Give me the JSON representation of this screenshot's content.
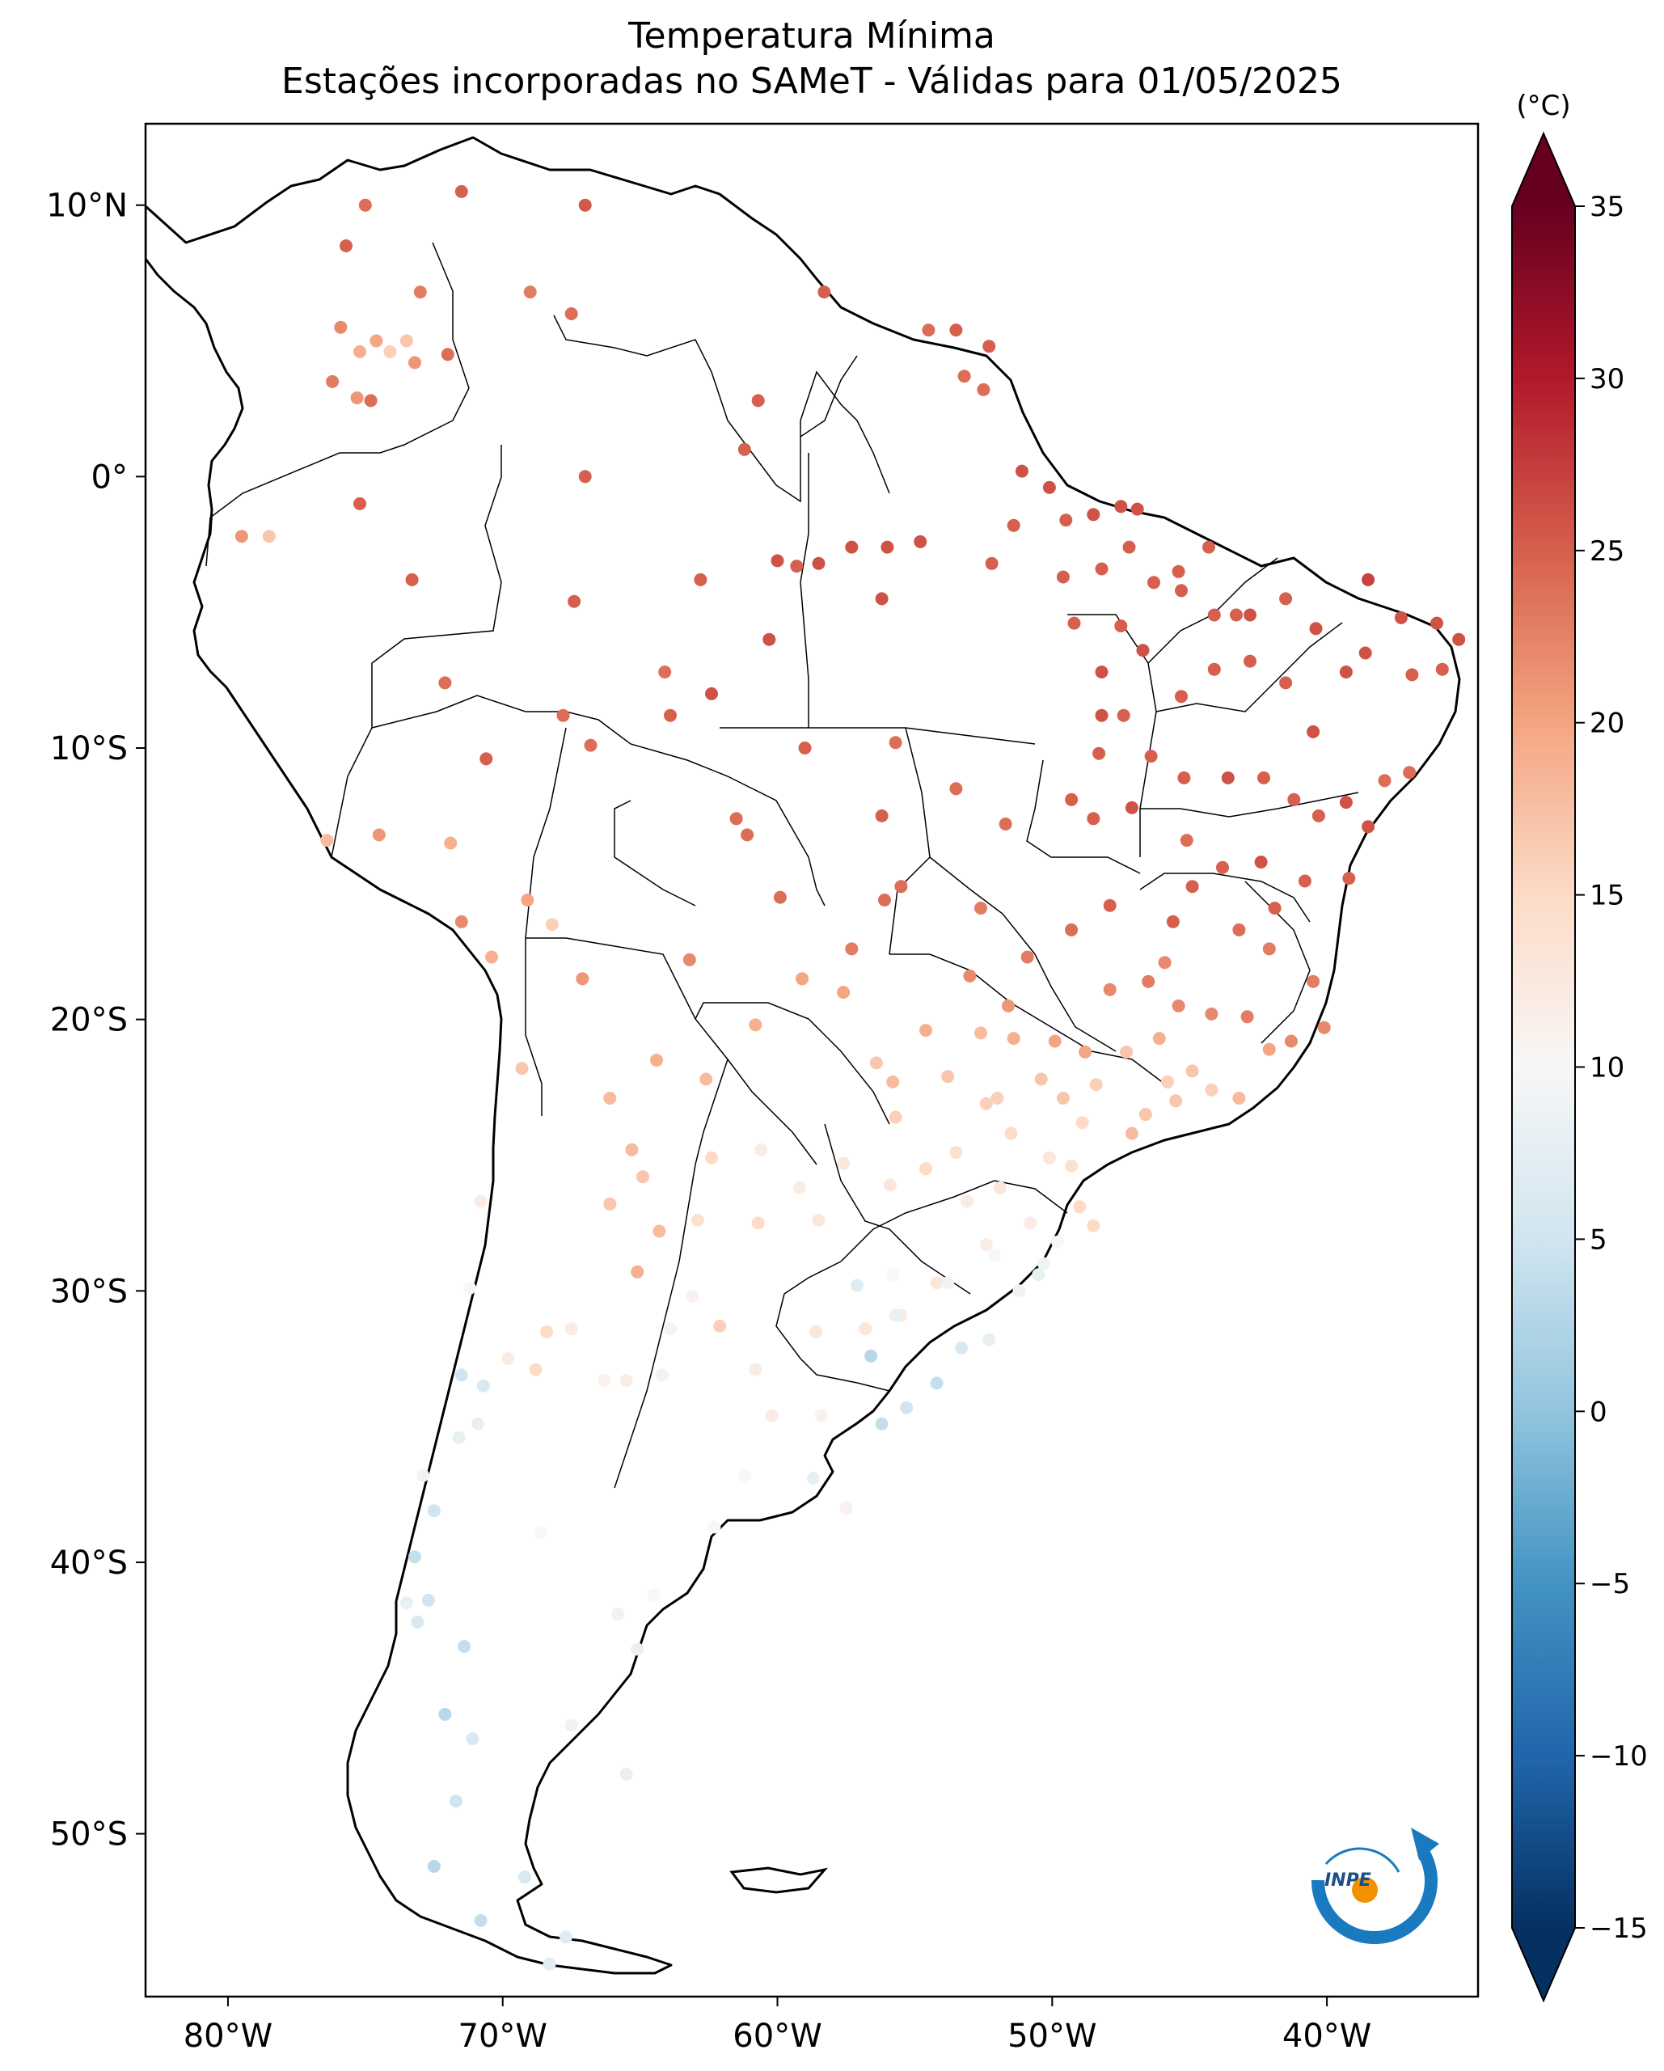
{
  "title": {
    "line1": "Temperatura Mínima",
    "line2": "Estações incorporadas no SAMeT - Válidas para 01/05/2025"
  },
  "map": {
    "lon_range": [
      -83,
      -34.5
    ],
    "lat_range": [
      -56,
      13
    ],
    "lon_ticks": [
      {
        "value": -80,
        "label": "80°W"
      },
      {
        "value": -70,
        "label": "70°W"
      },
      {
        "value": -60,
        "label": "60°W"
      },
      {
        "value": -50,
        "label": "50°W"
      },
      {
        "value": -40,
        "label": "40°W"
      }
    ],
    "lat_ticks": [
      {
        "value": 10,
        "label": "10°N"
      },
      {
        "value": 0,
        "label": "0°"
      },
      {
        "value": -10,
        "label": "10°S"
      },
      {
        "value": -20,
        "label": "20°S"
      },
      {
        "value": -30,
        "label": "30°S"
      },
      {
        "value": -40,
        "label": "40°S"
      },
      {
        "value": -50,
        "label": "50°S"
      }
    ]
  },
  "colorbar": {
    "unit": "(°C)",
    "min": -15,
    "max": 35,
    "ticks": [
      {
        "value": 35,
        "label": "35"
      },
      {
        "value": 30,
        "label": "30"
      },
      {
        "value": 25,
        "label": "25"
      },
      {
        "value": 20,
        "label": "20"
      },
      {
        "value": 15,
        "label": "15"
      },
      {
        "value": 10,
        "label": "10"
      },
      {
        "value": 5,
        "label": "5"
      },
      {
        "value": 0,
        "label": "0"
      },
      {
        "value": -5,
        "label": "−5"
      },
      {
        "value": -10,
        "label": "−10"
      },
      {
        "value": -15,
        "label": "−15"
      }
    ],
    "colormap": [
      "#053061",
      "#2166ac",
      "#4393c3",
      "#92c5de",
      "#d1e5f0",
      "#f7f7f7",
      "#fddbc7",
      "#f4a582",
      "#d6604d",
      "#b2182b",
      "#67001f"
    ]
  },
  "logo": {
    "text": "INPE",
    "ring_color": "#1a7abf",
    "dot_color": "#f29100"
  },
  "chart_data": {
    "type": "scatter",
    "x_name": "longitude",
    "y_name": "latitude",
    "value_name": "minimum temperature",
    "stations": [
      [
        -75,
        10,
        24
      ],
      [
        -71.5,
        10.5,
        25
      ],
      [
        -67,
        10,
        25.5
      ],
      [
        -75.7,
        8.5,
        25
      ],
      [
        -73,
        6.8,
        23
      ],
      [
        -69,
        6.8,
        23
      ],
      [
        -67.5,
        6,
        24
      ],
      [
        -75.9,
        5.5,
        22
      ],
      [
        -75.2,
        4.6,
        19
      ],
      [
        -74.6,
        5,
        20
      ],
      [
        -74.1,
        4.6,
        16
      ],
      [
        -73.5,
        5,
        17
      ],
      [
        -73.2,
        4.2,
        21
      ],
      [
        -76.2,
        3.5,
        23
      ],
      [
        -75.3,
        2.9,
        21
      ],
      [
        -72,
        4.5,
        24
      ],
      [
        -74.8,
        2.8,
        24
      ],
      [
        -58.3,
        6.8,
        25
      ],
      [
        -54.5,
        5.4,
        24
      ],
      [
        -53.5,
        5.4,
        25
      ],
      [
        -52.3,
        4.8,
        25
      ],
      [
        -53.2,
        3.7,
        24
      ],
      [
        -52.5,
        3.2,
        24
      ],
      [
        -60.7,
        2.8,
        25
      ],
      [
        -61.2,
        1,
        25
      ],
      [
        -67,
        0,
        25
      ],
      [
        -51.1,
        0.2,
        26
      ],
      [
        -50.1,
        -0.4,
        26
      ],
      [
        -75.2,
        -1,
        25
      ],
      [
        -78.5,
        -2.2,
        17
      ],
      [
        -79.5,
        -2.2,
        21
      ],
      [
        -48.5,
        -1.4,
        26
      ],
      [
        -47.5,
        -1.1,
        26
      ],
      [
        -44.3,
        -2.6,
        25
      ],
      [
        -46.9,
        -1.2,
        26
      ],
      [
        -49.5,
        -1.6,
        25
      ],
      [
        -60,
        -3.1,
        26
      ],
      [
        -58.5,
        -3.2,
        26
      ],
      [
        -57.3,
        -2.6,
        26
      ],
      [
        -59.3,
        -3.3,
        25
      ],
      [
        -56,
        -2.6,
        26
      ],
      [
        -54.8,
        -2.4,
        26
      ],
      [
        -52.2,
        -3.2,
        25
      ],
      [
        -51.4,
        -1.8,
        25
      ],
      [
        -49.6,
        -3.7,
        25
      ],
      [
        -48.2,
        -3.4,
        25
      ],
      [
        -46.3,
        -3.9,
        25
      ],
      [
        -45.4,
        -3.5,
        25
      ],
      [
        -47.2,
        -2.6,
        25
      ],
      [
        -73.3,
        -3.8,
        25
      ],
      [
        -67.4,
        -4.6,
        25
      ],
      [
        -60.3,
        -6,
        26
      ],
      [
        -62.8,
        -3.8,
        25
      ],
      [
        -62.4,
        -8,
        26
      ],
      [
        -56.2,
        -4.5,
        26
      ],
      [
        -49.2,
        -5.4,
        25
      ],
      [
        -47.5,
        -5.5,
        25
      ],
      [
        -45.3,
        -4.2,
        25
      ],
      [
        -44.1,
        -5.1,
        25
      ],
      [
        -43.3,
        -5.1,
        25
      ],
      [
        -42.8,
        -5.1,
        26
      ],
      [
        -41.5,
        -4.5,
        25
      ],
      [
        -40.4,
        -5.6,
        26
      ],
      [
        -38.5,
        -3.8,
        27
      ],
      [
        -37.3,
        -5.2,
        26
      ],
      [
        -36,
        -5.4,
        26
      ],
      [
        -35.2,
        -6,
        26
      ],
      [
        -35.8,
        -7.1,
        25
      ],
      [
        -36.9,
        -7.3,
        25
      ],
      [
        -38.6,
        -6.5,
        26
      ],
      [
        -39.3,
        -7.2,
        26
      ],
      [
        -40.5,
        -9.4,
        26
      ],
      [
        -41.5,
        -7.6,
        25
      ],
      [
        -42.8,
        -6.8,
        25
      ],
      [
        -44.1,
        -7.1,
        25
      ],
      [
        -45.3,
        -8.1,
        25
      ],
      [
        -46.7,
        -6.4,
        26
      ],
      [
        -48.2,
        -7.2,
        26
      ],
      [
        -47.4,
        -8.8,
        25
      ],
      [
        -48.3,
        -10.2,
        25
      ],
      [
        -49.3,
        -11.9,
        25
      ],
      [
        -48.5,
        -12.6,
        25
      ],
      [
        -47.1,
        -12.2,
        26
      ],
      [
        -45.2,
        -11.1,
        25
      ],
      [
        -43.6,
        -11.1,
        26
      ],
      [
        -42.3,
        -11.1,
        25
      ],
      [
        -41.2,
        -11.9,
        25
      ],
      [
        -40.3,
        -12.5,
        25
      ],
      [
        -39.3,
        -12,
        26
      ],
      [
        -38.5,
        -12.9,
        26
      ],
      [
        -39.2,
        -14.8,
        25
      ],
      [
        -40.8,
        -14.9,
        25
      ],
      [
        -42.4,
        -14.2,
        26
      ],
      [
        -43.8,
        -14.4,
        25
      ],
      [
        -44.9,
        -15.1,
        25
      ],
      [
        -45.6,
        -16.4,
        25
      ],
      [
        -47.9,
        -15.8,
        25
      ],
      [
        -49.3,
        -16.7,
        24
      ],
      [
        -50.9,
        -17.7,
        23
      ],
      [
        -52.6,
        -15.9,
        23
      ],
      [
        -55.5,
        -15.1,
        24
      ],
      [
        -56.1,
        -15.6,
        24
      ],
      [
        -57.3,
        -17.4,
        23
      ],
      [
        -59.9,
        -15.5,
        24
      ],
      [
        -61.1,
        -13.2,
        24
      ],
      [
        -63.9,
        -8.8,
        25
      ],
      [
        -66.8,
        -9.9,
        24
      ],
      [
        -70.6,
        -10.4,
        25
      ],
      [
        -67.8,
        -8.8,
        24
      ],
      [
        -72.1,
        -7.6,
        24
      ],
      [
        -64.1,
        -7.2,
        24
      ],
      [
        -61.5,
        -12.6,
        24
      ],
      [
        -59,
        -10,
        25
      ],
      [
        -56.2,
        -12.5,
        25
      ],
      [
        -55.7,
        -9.8,
        24
      ],
      [
        -53.5,
        -11.5,
        24
      ],
      [
        -51.7,
        -12.8,
        24
      ],
      [
        -48.2,
        -8.8,
        26
      ],
      [
        -46.4,
        -10.3,
        25
      ],
      [
        -45.1,
        -13.4,
        24
      ],
      [
        -43.2,
        -16.7,
        24
      ],
      [
        -42.1,
        -17.4,
        23
      ],
      [
        -40.5,
        -18.6,
        23
      ],
      [
        -40.1,
        -20.3,
        22
      ],
      [
        -41.3,
        -20.8,
        22
      ],
      [
        -42.9,
        -19.9,
        23
      ],
      [
        -44.2,
        -19.8,
        22
      ],
      [
        -45.4,
        -19.5,
        22
      ],
      [
        -46.5,
        -18.6,
        23
      ],
      [
        -47.9,
        -18.9,
        22
      ],
      [
        -48.8,
        -21.2,
        20
      ],
      [
        -49.9,
        -20.8,
        20
      ],
      [
        -51.4,
        -20.7,
        19
      ],
      [
        -52.6,
        -20.5,
        18
      ],
      [
        -54.6,
        -20.4,
        19
      ],
      [
        -55.8,
        -22.3,
        18
      ],
      [
        -57.6,
        -19,
        20
      ],
      [
        -59.1,
        -18.5,
        20
      ],
      [
        -60.8,
        -20.2,
        19
      ],
      [
        -62.6,
        -22.2,
        18
      ],
      [
        -63.2,
        -17.8,
        22
      ],
      [
        -64.4,
        -21.5,
        19
      ],
      [
        -65.3,
        -24.8,
        18
      ],
      [
        -66.1,
        -22.9,
        18
      ],
      [
        -67.1,
        -18.5,
        21
      ],
      [
        -68.2,
        -16.5,
        16
      ],
      [
        -71.5,
        -16.4,
        22
      ],
      [
        -69.1,
        -15.6,
        20
      ],
      [
        -76.4,
        -13.4,
        18
      ],
      [
        -74.5,
        -13.2,
        21
      ],
      [
        -71.9,
        -13.5,
        19
      ],
      [
        -70.4,
        -17.7,
        19
      ],
      [
        -69.3,
        -21.8,
        17
      ],
      [
        -65.1,
        -29.3,
        19
      ],
      [
        -64.3,
        -27.8,
        18
      ],
      [
        -62.1,
        -31.3,
        16
      ],
      [
        -60.7,
        -27.5,
        15
      ],
      [
        -58.5,
        -27.4,
        13
      ],
      [
        -56.8,
        -31.4,
        13
      ],
      [
        -55.5,
        -30.9,
        12
      ],
      [
        -54.2,
        -29.7,
        13
      ],
      [
        -52.4,
        -28.3,
        12
      ],
      [
        -50.8,
        -27.5,
        12
      ],
      [
        -49,
        -26.9,
        15
      ],
      [
        -48.5,
        -27.6,
        15
      ],
      [
        -49.3,
        -25.4,
        14
      ],
      [
        -50.1,
        -25.1,
        13
      ],
      [
        -51.5,
        -24.2,
        15
      ],
      [
        -52.4,
        -23.1,
        16
      ],
      [
        -53.5,
        -24.9,
        14
      ],
      [
        -54.6,
        -25.5,
        15
      ],
      [
        -55.9,
        -26.1,
        13
      ],
      [
        -57.6,
        -25.3,
        13
      ],
      [
        -59.2,
        -26.2,
        12
      ],
      [
        -60.6,
        -24.8,
        12
      ],
      [
        -62.4,
        -25.1,
        15
      ],
      [
        -64.9,
        -25.8,
        17
      ],
      [
        -66.1,
        -26.8,
        17
      ],
      [
        -68.4,
        -31.5,
        15
      ],
      [
        -68.8,
        -32.9,
        15
      ],
      [
        -70.8,
        -26.7,
        12
      ],
      [
        -71.2,
        -29.9,
        10
      ],
      [
        -71.5,
        -33.1,
        5
      ],
      [
        -70.7,
        -33.5,
        6
      ],
      [
        -71.6,
        -35.4,
        8
      ],
      [
        -72.5,
        -38.1,
        5
      ],
      [
        -73.2,
        -39.8,
        4
      ],
      [
        -72.7,
        -41.4,
        5
      ],
      [
        -73.1,
        -42.2,
        6
      ],
      [
        -71.4,
        -43.1,
        4
      ],
      [
        -72.1,
        -45.6,
        3
      ],
      [
        -71.1,
        -46.5,
        6
      ],
      [
        -71.7,
        -48.8,
        5
      ],
      [
        -72.5,
        -51.2,
        3
      ],
      [
        -70.8,
        -53.2,
        4
      ],
      [
        -69.2,
        -51.6,
        6
      ],
      [
        -67.7,
        -53.8,
        7
      ],
      [
        -68.3,
        -54.8,
        7
      ],
      [
        -65.5,
        -47.8,
        8
      ],
      [
        -67.5,
        -46,
        9
      ],
      [
        -65.1,
        -43.2,
        8
      ],
      [
        -65.8,
        -41.9,
        9
      ],
      [
        -68.6,
        -38.9,
        10
      ],
      [
        -64.5,
        -41.2,
        10
      ],
      [
        -62.3,
        -38.7,
        10
      ],
      [
        -61.2,
        -36.8,
        10
      ],
      [
        -58.7,
        -36.9,
        8
      ],
      [
        -57.5,
        -38,
        11
      ],
      [
        -60.2,
        -34.6,
        12
      ],
      [
        -58.4,
        -34.6,
        11
      ],
      [
        -56.2,
        -34.9,
        4
      ],
      [
        -55.3,
        -34.3,
        5
      ],
      [
        -54.2,
        -33.4,
        4
      ],
      [
        -53.3,
        -32.1,
        6
      ],
      [
        -52.3,
        -31.8,
        8
      ],
      [
        -51.2,
        -30,
        9
      ],
      [
        -50.5,
        -29.4,
        8
      ],
      [
        -52.1,
        -28.7,
        10
      ],
      [
        -53.8,
        -29.7,
        9
      ],
      [
        -55.8,
        -29.4,
        10
      ],
      [
        -57.1,
        -29.8,
        7
      ],
      [
        -56.6,
        -32.4,
        3
      ],
      [
        -55.7,
        -30.9,
        8
      ],
      [
        -63.9,
        -31.4,
        11
      ],
      [
        -64.2,
        -33.1,
        9
      ],
      [
        -65.5,
        -33.3,
        12
      ],
      [
        -66.3,
        -33.3,
        11
      ],
      [
        -67.5,
        -31.4,
        12
      ],
      [
        -69.8,
        -32.5,
        12
      ],
      [
        -70.9,
        -34.9,
        8
      ],
      [
        -72.9,
        -36.8,
        9
      ],
      [
        -73.5,
        -41.5,
        8
      ],
      [
        -63.1,
        -30.2,
        11
      ],
      [
        -62.9,
        -27.4,
        14
      ],
      [
        -58.6,
        -31.5,
        13
      ],
      [
        -60.8,
        -32.9,
        12
      ],
      [
        -49.6,
        -22.9,
        17
      ],
      [
        -48.4,
        -22.4,
        16
      ],
      [
        -46.6,
        -23.5,
        17
      ],
      [
        -45.8,
        -22.3,
        16
      ],
      [
        -44.2,
        -22.6,
        16
      ],
      [
        -43.2,
        -22.9,
        18
      ],
      [
        -47.3,
        -21.2,
        17
      ],
      [
        -50.4,
        -22.2,
        17
      ],
      [
        -52,
        -22.9,
        16
      ],
      [
        -53.8,
        -22.1,
        17
      ],
      [
        -55.7,
        -23.6,
        16
      ],
      [
        -56.4,
        -21.6,
        17
      ],
      [
        -46.1,
        -20.7,
        19
      ],
      [
        -44.9,
        -21.9,
        17
      ],
      [
        -42.1,
        -21.1,
        20
      ],
      [
        -41.9,
        -15.9,
        25
      ],
      [
        -37.9,
        -11.2,
        24
      ],
      [
        -37,
        -10.9,
        24
      ],
      [
        -45.9,
        -17.9,
        22
      ],
      [
        -51.6,
        -19.5,
        21
      ],
      [
        -53,
        -18.4,
        22
      ],
      [
        -45.5,
        -23,
        17
      ],
      [
        -48.9,
        -23.8,
        15
      ],
      [
        -47.1,
        -24.2,
        18
      ],
      [
        -51.9,
        -26.2,
        13
      ],
      [
        -53.1,
        -26.7,
        12
      ],
      [
        -49.8,
        -28.2,
        10
      ],
      [
        -50.3,
        -29,
        9
      ]
    ]
  }
}
